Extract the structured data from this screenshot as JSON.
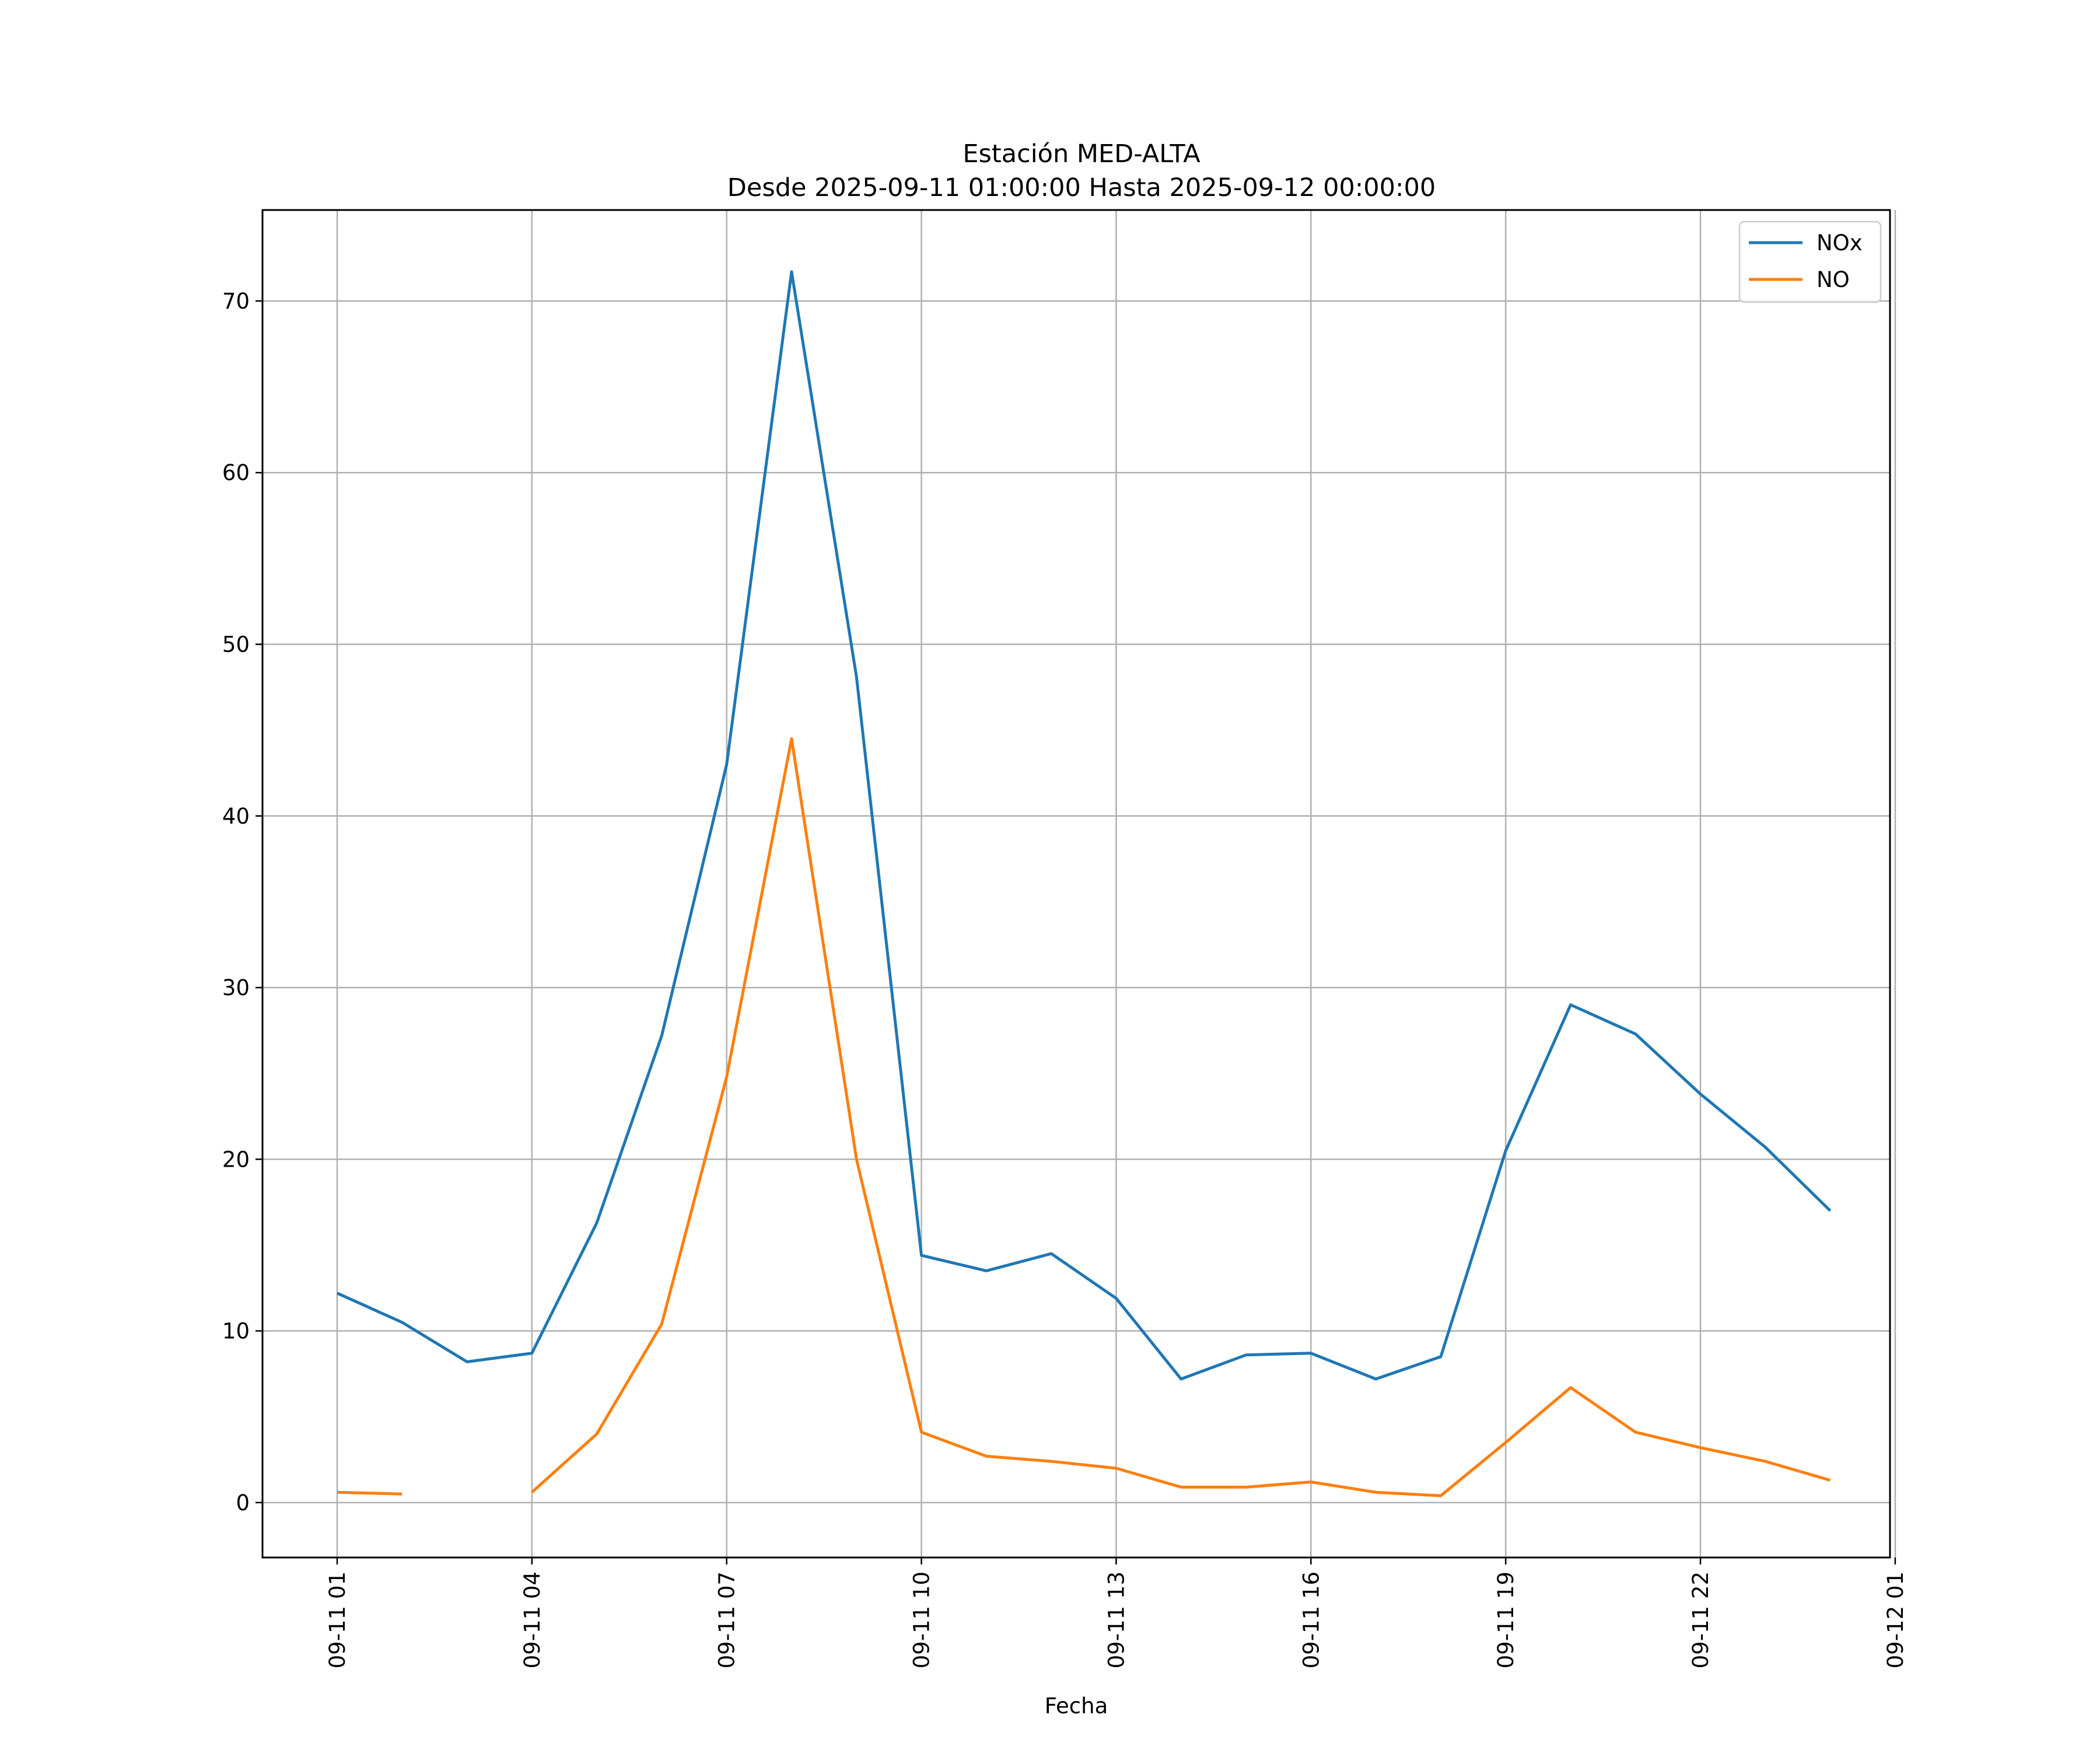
{
  "chart_data": {
    "type": "line",
    "title": "Estación MED-ALTA",
    "subtitle": "Desde 2025-09-11 01:00:00 Hasta 2025-09-12 00:00:00",
    "xlabel": "Fecha",
    "ylabel": "",
    "x": [
      "09-11 01",
      "09-11 02",
      "09-11 03",
      "09-11 04",
      "09-11 05",
      "09-11 06",
      "09-11 07",
      "09-11 08",
      "09-11 09",
      "09-11 10",
      "09-11 11",
      "09-11 12",
      "09-11 13",
      "09-11 14",
      "09-11 15",
      "09-11 16",
      "09-11 17",
      "09-11 18",
      "09-11 19",
      "09-11 20",
      "09-11 21",
      "09-11 22",
      "09-11 23",
      "09-12 00"
    ],
    "xlim": [
      "09-11 00",
      "09-12 01"
    ],
    "x_ticks": [
      "09-11 01",
      "09-11 04",
      "09-11 07",
      "09-11 10",
      "09-11 13",
      "09-11 16",
      "09-11 19",
      "09-11 22",
      "09-12 01"
    ],
    "ylim": [
      -3.2,
      75.3
    ],
    "y_ticks": [
      0,
      10,
      20,
      30,
      40,
      50,
      60,
      70
    ],
    "grid": true,
    "legend_position": "top-right",
    "series": [
      {
        "name": "NOx",
        "color": "#1f77b4",
        "values": [
          12.2,
          10.5,
          8.2,
          8.7,
          16.3,
          27.2,
          43.0,
          71.7,
          48.1,
          14.4,
          13.5,
          14.5,
          11.9,
          7.2,
          8.6,
          8.7,
          7.2,
          8.5,
          20.5,
          29.0,
          27.3,
          23.8,
          20.7,
          17.0
        ]
      },
      {
        "name": "NO",
        "color": "#ff7f0e",
        "values": [
          0.6,
          0.5,
          null,
          0.6,
          4.0,
          10.4,
          24.8,
          44.5,
          20.0,
          4.1,
          2.7,
          2.4,
          2.0,
          0.9,
          0.9,
          1.2,
          0.6,
          0.4,
          3.5,
          6.7,
          4.1,
          3.2,
          2.4,
          1.3
        ]
      }
    ]
  }
}
